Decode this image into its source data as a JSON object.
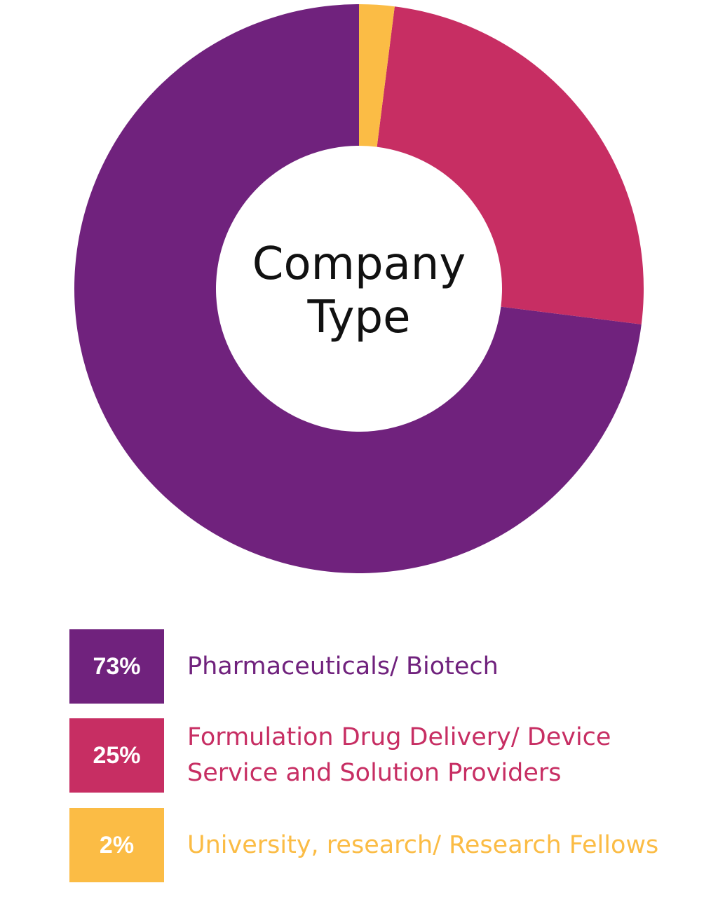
{
  "chart_data": {
    "type": "pie",
    "title_lines": [
      "Company",
      "Type"
    ],
    "slices": [
      {
        "value": 73,
        "value_label": "73%",
        "label_lines": [
          "Pharmaceuticals/ Biotech"
        ],
        "color": "#70227d"
      },
      {
        "value": 25,
        "value_label": "25%",
        "label_lines": [
          "Formulation Drug Delivery/ Device",
          "Service and Solution Providers"
        ],
        "color": "#c72e63"
      },
      {
        "value": 2,
        "value_label": "2%",
        "label_lines": [
          "University, research/ Research Fellows"
        ],
        "color": "#fbbc45"
      }
    ],
    "legend_position": "bottom"
  }
}
